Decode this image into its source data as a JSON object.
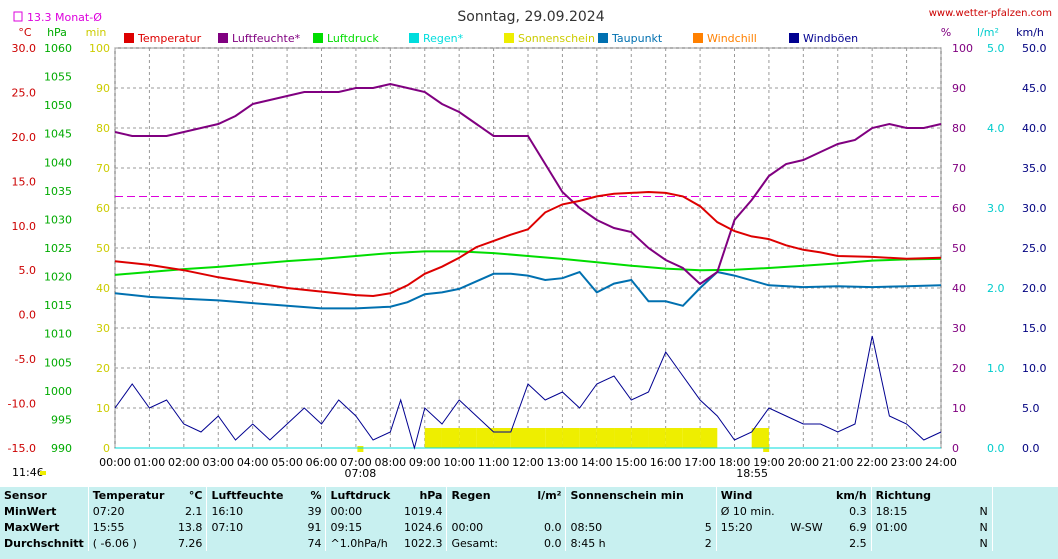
{
  "header": {
    "title": "Sonntag, 29.09.2024",
    "site": "www.wetter-pfalzen.com",
    "month_avg": "13.3 Monat-Ø"
  },
  "axes": {
    "left_units": [
      "°C",
      "hPa",
      "min"
    ],
    "right_units": [
      "%",
      "l/m²",
      "km/h"
    ],
    "temp_ticks": [
      "30.0",
      "25.0",
      "20.0",
      "15.0",
      "10.0",
      "5.0",
      "0.0",
      "-5.0",
      "-10.0",
      "-15.0"
    ],
    "press_ticks": [
      "1060",
      "1055",
      "1050",
      "1045",
      "1040",
      "1035",
      "1030",
      "1025",
      "1020",
      "1015",
      "1010",
      "1005",
      "1000",
      "995",
      "990"
    ],
    "min_ticks": [
      "100",
      "90",
      "80",
      "70",
      "60",
      "50",
      "40",
      "30",
      "20",
      "10",
      "0"
    ],
    "pct_ticks": [
      "100",
      "90",
      "80",
      "70",
      "60",
      "50",
      "40",
      "30",
      "20",
      "10",
      "0"
    ],
    "rain_ticks": [
      "5.0",
      "4.0",
      "3.0",
      "2.0",
      "1.0",
      "0.0"
    ],
    "wind_ticks": [
      "50.0",
      "45.0",
      "40.0",
      "35.0",
      "30.0",
      "25.0",
      "20.0",
      "15.0",
      "10.0",
      "5.0",
      "0.0"
    ],
    "time_ticks": [
      "00:00",
      "01:00",
      "02:00",
      "03:00",
      "04:00",
      "05:00",
      "06:00",
      "07:00",
      "08:00",
      "09:00",
      "10:00",
      "11:00",
      "12:00",
      "13:00",
      "14:00",
      "15:00",
      "16:00",
      "17:00",
      "18:00",
      "19:00",
      "20:00",
      "21:00",
      "22:00",
      "23:00",
      "24:00"
    ],
    "sunrise": "07:08",
    "sunset": "18:55",
    "bottom_left_time": "11:46"
  },
  "colors": {
    "temperature": "#dd0000",
    "humidity": "#800080",
    "pressure": "#00dd00",
    "rain": "#00dddd",
    "sunshine": "#eeee00",
    "dewpoint": "#0070b0",
    "windchill": "#ff8000",
    "gusts": "#000090",
    "month_avg": "#dd00dd"
  },
  "chart_data": {
    "type": "line",
    "title": "Sonntag, 29.09.2024",
    "xlim": [
      0,
      24
    ],
    "legend": [
      "Temperatur",
      "Luftfeuchte*",
      "Luftdruck",
      "Regen*",
      "Sonnenschein",
      "Taupunkt",
      "Windchill",
      "Windböen"
    ],
    "month_avg_temp": 13.3,
    "series": [
      {
        "name": "Temperatur",
        "axis": "°C",
        "ylim": [
          -15,
          30
        ],
        "x": [
          0,
          1,
          2,
          3,
          4,
          5,
          6,
          7,
          7.5,
          8,
          8.5,
          9,
          9.5,
          10,
          10.5,
          11,
          11.5,
          12,
          12.5,
          13,
          13.5,
          14,
          14.5,
          15,
          15.5,
          16,
          16.5,
          17,
          17.5,
          18,
          18.5,
          19,
          19.5,
          20,
          20.5,
          21,
          22,
          23,
          24
        ],
        "y": [
          6.0,
          5.6,
          5.0,
          4.2,
          3.6,
          3.0,
          2.6,
          2.2,
          2.1,
          2.4,
          3.3,
          4.6,
          5.4,
          6.4,
          7.6,
          8.3,
          9.0,
          9.6,
          11.5,
          12.4,
          12.8,
          13.3,
          13.6,
          13.7,
          13.8,
          13.7,
          13.3,
          12.2,
          10.4,
          9.4,
          8.8,
          8.5,
          7.8,
          7.3,
          7.0,
          6.6,
          6.5,
          6.3,
          6.4
        ]
      },
      {
        "name": "Luftfeuchte*",
        "axis": "%",
        "ylim": [
          0,
          100
        ],
        "x": [
          0,
          0.5,
          1,
          1.5,
          2,
          2.5,
          3,
          3.5,
          4,
          4.5,
          5,
          5.5,
          6,
          6.5,
          7,
          7.5,
          8,
          8.5,
          9,
          9.5,
          10,
          10.5,
          11,
          11.5,
          12,
          12.5,
          13,
          13.5,
          14,
          14.5,
          15,
          15.5,
          16,
          16.5,
          17,
          17.5,
          18,
          18.5,
          19,
          19.5,
          20,
          20.5,
          21,
          21.5,
          22,
          22.5,
          23,
          23.5,
          24
        ],
        "y": [
          79,
          78,
          78,
          78,
          79,
          80,
          81,
          83,
          86,
          87,
          88,
          89,
          89,
          89,
          90,
          90,
          91,
          90,
          89,
          86,
          84,
          81,
          78,
          78,
          78,
          71,
          64,
          60,
          57,
          55,
          54,
          50,
          47,
          45,
          41,
          44,
          57,
          62,
          68,
          71,
          72,
          74,
          76,
          77,
          80,
          81,
          80,
          80,
          81
        ]
      },
      {
        "name": "Luftdruck",
        "axis": "hPa",
        "ylim": [
          990,
          1060
        ],
        "x": [
          0,
          1,
          2,
          3,
          4,
          5,
          6,
          7,
          8,
          9,
          10,
          11,
          12,
          13,
          14,
          15,
          16,
          17,
          18,
          19,
          20,
          21,
          22,
          23,
          24
        ],
        "y": [
          1020.3,
          1020.8,
          1021.3,
          1021.7,
          1022.2,
          1022.7,
          1023.1,
          1023.6,
          1024.1,
          1024.4,
          1024.4,
          1024.1,
          1023.6,
          1023.1,
          1022.5,
          1021.9,
          1021.4,
          1021.1,
          1021.2,
          1021.5,
          1021.9,
          1022.3,
          1022.8,
          1023.0,
          1023.1
        ]
      },
      {
        "name": "Taupunkt",
        "axis": "°C",
        "ylim": [
          -15,
          30
        ],
        "x": [
          0,
          1,
          2,
          3,
          4,
          5,
          6,
          7,
          8,
          8.5,
          9,
          9.5,
          10,
          11,
          11.5,
          12,
          12.5,
          13,
          13.5,
          14,
          14.5,
          15,
          15.5,
          16,
          16.5,
          17,
          17.5,
          18,
          19,
          20,
          21,
          22,
          23,
          24
        ],
        "y": [
          2.4,
          2.0,
          1.8,
          1.6,
          1.3,
          1.0,
          0.7,
          0.7,
          0.9,
          1.4,
          2.3,
          2.5,
          2.9,
          4.6,
          4.6,
          4.4,
          3.9,
          4.1,
          4.8,
          2.5,
          3.5,
          3.9,
          1.5,
          1.5,
          1.0,
          3.0,
          4.8,
          4.4,
          3.3,
          3.1,
          3.2,
          3.1,
          3.2,
          3.3
        ]
      },
      {
        "name": "Windböen",
        "axis": "km/h",
        "ylim": [
          0,
          50
        ],
        "x": [
          0,
          0.5,
          1,
          1.5,
          2,
          2.5,
          3,
          3.5,
          4,
          4.5,
          5,
          5.5,
          6,
          6.5,
          7,
          7.5,
          8,
          8.3,
          8.7,
          9,
          9.5,
          10,
          10.5,
          11,
          11.5,
          12,
          12.5,
          13,
          13.5,
          14,
          14.5,
          15,
          15.5,
          16,
          16.5,
          17,
          17.5,
          18,
          18.5,
          19,
          19.5,
          20,
          20.5,
          21,
          21.5,
          22,
          22.5,
          23,
          23.5,
          24
        ],
        "y": [
          5,
          8,
          5,
          6,
          3,
          2,
          4,
          1,
          3,
          1,
          3,
          5,
          3,
          6,
          4,
          1,
          2,
          6,
          0,
          5,
          3,
          6,
          4,
          2,
          2,
          8,
          6,
          7,
          5,
          8,
          9,
          6,
          7,
          12,
          9,
          6,
          4,
          1,
          2,
          5,
          4,
          3,
          3,
          2,
          3,
          14,
          4,
          3,
          1,
          2
        ]
      },
      {
        "name": "Sonnenschein",
        "axis": "min",
        "ylim": [
          0,
          100
        ],
        "x": [
          9,
          9.5,
          10,
          10.5,
          11,
          11.5,
          12,
          12.5,
          13,
          13.5,
          14,
          14.5,
          15,
          15.5,
          16,
          16.5,
          17,
          17.5,
          18.5
        ],
        "y": [
          5,
          5,
          5,
          5,
          5,
          5,
          5,
          5,
          5,
          5,
          5,
          5,
          5,
          5,
          5,
          5,
          5,
          0,
          5
        ]
      },
      {
        "name": "Regen*",
        "axis": "l/m²",
        "ylim": [
          0,
          5
        ],
        "x": [
          0,
          24
        ],
        "y": [
          0,
          0
        ]
      }
    ]
  },
  "stats": {
    "headers": {
      "sensor": "Sensor",
      "temp": "Temperatur",
      "temp_unit": "°C",
      "hum": "Luftfeuchte",
      "hum_unit": "%",
      "press": "Luftdruck",
      "press_unit": "hPa",
      "rain": "Regen",
      "rain_unit": "l/m²",
      "sun": "Sonnenschein min",
      "wind": "Wind",
      "wind_unit": "km/h",
      "dir": "Richtung"
    },
    "rows": [
      {
        "label": "MinWert",
        "temp_time": "07:20",
        "temp_val": "2.1",
        "hum_time": "16:10",
        "hum_val": "39",
        "press_time": "00:00",
        "press_val": "1019.4",
        "rain_time": "",
        "rain_val": "",
        "sun_time": "",
        "sun_val": "",
        "wind_label": "Ø 10 min.",
        "wind_dir": "",
        "wind_val": "0.3",
        "dir_time": "18:15",
        "dir_val": "N"
      },
      {
        "label": "MaxWert",
        "temp_time": "15:55",
        "temp_val": "13.8",
        "hum_time": "07:10",
        "hum_val": "91",
        "press_time": "09:15",
        "press_val": "1024.6",
        "rain_time": "00:00",
        "rain_val": "0.0",
        "sun_time": "08:50",
        "sun_val": "5",
        "wind_label": "15:20",
        "wind_dir": "W-SW",
        "wind_val": "6.9",
        "dir_time": "01:00",
        "dir_val": "N"
      },
      {
        "label": "Durchschnitt",
        "temp_time": "( -6.06 )",
        "temp_val": "7.26",
        "hum_time": "",
        "hum_val": "74",
        "press_time": "^1.0hPa/h",
        "press_val": "1022.3",
        "rain_time": "Gesamt:",
        "rain_val": "0.0",
        "sun_time": "8:45 h",
        "sun_val": "2",
        "wind_label": "",
        "wind_dir": "",
        "wind_val": "2.5",
        "dir_time": "",
        "dir_val": "N"
      }
    ]
  }
}
